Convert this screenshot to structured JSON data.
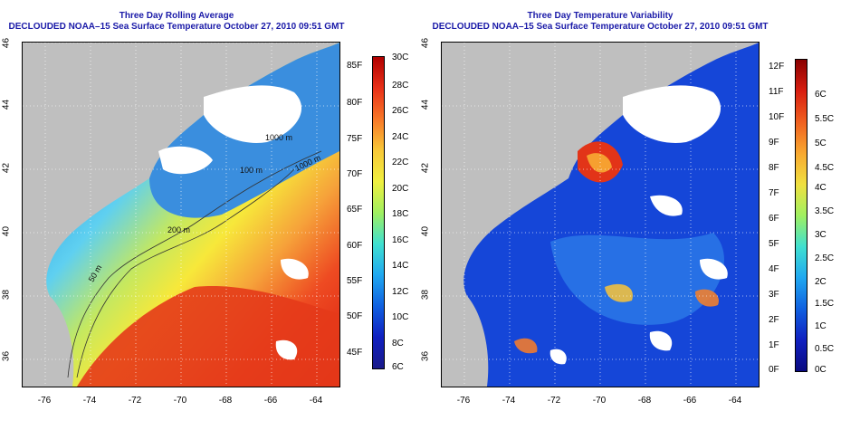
{
  "left_panel": {
    "title_line1": "Three Day Rolling Average",
    "title_line2": "DECLOUDED NOAA–15 Sea Surface Temperature October 27, 2010 09:51 GMT",
    "colorbar_f": [
      "85F",
      "80F",
      "75F",
      "70F",
      "65F",
      "60F",
      "55F",
      "50F",
      "45F"
    ],
    "colorbar_c": [
      "30C",
      "28C",
      "26C",
      "24C",
      "22C",
      "20C",
      "18C",
      "16C",
      "14C",
      "12C",
      "10C",
      "8C",
      "6C"
    ],
    "contours": [
      "1000 m",
      "100 m",
      "200 m",
      "50 m",
      "1000 m"
    ]
  },
  "right_panel": {
    "title_line1": "Three Day Temperature Variability",
    "title_line2": "DECLOUDED NOAA–15 Sea Surface Temperature October 27, 2010 09:51 GMT",
    "colorbar_f": [
      "12F",
      "11F",
      "10F",
      "9F",
      "8F",
      "7F",
      "6F",
      "5F",
      "4F",
      "3F",
      "2F",
      "1F",
      "0F"
    ],
    "colorbar_c": [
      "6C",
      "5.5C",
      "5C",
      "4.5C",
      "4C",
      "3.5C",
      "3C",
      "2.5C",
      "2C",
      "1.5C",
      "1C",
      "0.5C",
      "0C"
    ]
  },
  "y_axis": [
    "46",
    "44",
    "42",
    "40",
    "38",
    "36"
  ],
  "x_axis": [
    "-76",
    "-74",
    "-72",
    "-70",
    "-68",
    "-66",
    "-64"
  ],
  "colors": {
    "title": "#1a1aa8",
    "land": "#bfbfbf",
    "cloud": "#ffffff"
  }
}
